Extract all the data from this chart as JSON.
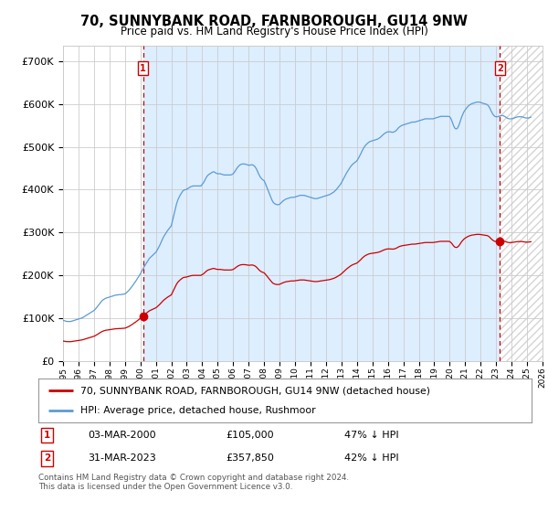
{
  "title": "70, SUNNYBANK ROAD, FARNBOROUGH, GU14 9NW",
  "subtitle": "Price paid vs. HM Land Registry's House Price Index (HPI)",
  "hpi_label": "HPI: Average price, detached house, Rushmoor",
  "property_label": "70, SUNNYBANK ROAD, FARNBOROUGH, GU14 9NW (detached house)",
  "sale1_date": "03-MAR-2000",
  "sale1_price": 105000,
  "sale1_text": "47% ↓ HPI",
  "sale2_date": "31-MAR-2023",
  "sale2_price": 357850,
  "sale2_text": "42% ↓ HPI",
  "yticks": [
    0,
    100000,
    200000,
    300000,
    400000,
    500000,
    600000,
    700000
  ],
  "background_color": "#ffffff",
  "grid_color": "#cccccc",
  "hpi_color": "#5b9bd5",
  "sale_color": "#cc0000",
  "vline_color": "#cc0000",
  "fill_color": "#ddeeff",
  "footnote": "Contains HM Land Registry data © Crown copyright and database right 2024.\nThis data is licensed under the Open Government Licence v3.0.",
  "hpi_monthly": {
    "dates": [
      1995.0,
      1995.083,
      1995.167,
      1995.25,
      1995.333,
      1995.417,
      1995.5,
      1995.583,
      1995.667,
      1995.75,
      1995.833,
      1995.917,
      1996.0,
      1996.083,
      1996.167,
      1996.25,
      1996.333,
      1996.417,
      1996.5,
      1996.583,
      1996.667,
      1996.75,
      1996.833,
      1996.917,
      1997.0,
      1997.083,
      1997.167,
      1997.25,
      1997.333,
      1997.417,
      1997.5,
      1997.583,
      1997.667,
      1997.75,
      1997.833,
      1997.917,
      1998.0,
      1998.083,
      1998.167,
      1998.25,
      1998.333,
      1998.417,
      1998.5,
      1998.583,
      1998.667,
      1998.75,
      1998.833,
      1998.917,
      1999.0,
      1999.083,
      1999.167,
      1999.25,
      1999.333,
      1999.417,
      1999.5,
      1999.583,
      1999.667,
      1999.75,
      1999.833,
      1999.917,
      2000.0,
      2000.083,
      2000.167,
      2000.25,
      2000.333,
      2000.417,
      2000.5,
      2000.583,
      2000.667,
      2000.75,
      2000.833,
      2000.917,
      2001.0,
      2001.083,
      2001.167,
      2001.25,
      2001.333,
      2001.417,
      2001.5,
      2001.583,
      2001.667,
      2001.75,
      2001.833,
      2001.917,
      2002.0,
      2002.083,
      2002.167,
      2002.25,
      2002.333,
      2002.417,
      2002.5,
      2002.583,
      2002.667,
      2002.75,
      2002.833,
      2002.917,
      2003.0,
      2003.083,
      2003.167,
      2003.25,
      2003.333,
      2003.417,
      2003.5,
      2003.583,
      2003.667,
      2003.75,
      2003.833,
      2003.917,
      2004.0,
      2004.083,
      2004.167,
      2004.25,
      2004.333,
      2004.417,
      2004.5,
      2004.583,
      2004.667,
      2004.75,
      2004.833,
      2004.917,
      2005.0,
      2005.083,
      2005.167,
      2005.25,
      2005.333,
      2005.417,
      2005.5,
      2005.583,
      2005.667,
      2005.75,
      2005.833,
      2005.917,
      2006.0,
      2006.083,
      2006.167,
      2006.25,
      2006.333,
      2006.417,
      2006.5,
      2006.583,
      2006.667,
      2006.75,
      2006.833,
      2006.917,
      2007.0,
      2007.083,
      2007.167,
      2007.25,
      2007.333,
      2007.417,
      2007.5,
      2007.583,
      2007.667,
      2007.75,
      2007.833,
      2007.917,
      2008.0,
      2008.083,
      2008.167,
      2008.25,
      2008.333,
      2008.417,
      2008.5,
      2008.583,
      2008.667,
      2008.75,
      2008.833,
      2008.917,
      2009.0,
      2009.083,
      2009.167,
      2009.25,
      2009.333,
      2009.417,
      2009.5,
      2009.583,
      2009.667,
      2009.75,
      2009.833,
      2009.917,
      2010.0,
      2010.083,
      2010.167,
      2010.25,
      2010.333,
      2010.417,
      2010.5,
      2010.583,
      2010.667,
      2010.75,
      2010.833,
      2010.917,
      2011.0,
      2011.083,
      2011.167,
      2011.25,
      2011.333,
      2011.417,
      2011.5,
      2011.583,
      2011.667,
      2011.75,
      2011.833,
      2011.917,
      2012.0,
      2012.083,
      2012.167,
      2012.25,
      2012.333,
      2012.417,
      2012.5,
      2012.583,
      2012.667,
      2012.75,
      2012.833,
      2012.917,
      2013.0,
      2013.083,
      2013.167,
      2013.25,
      2013.333,
      2013.417,
      2013.5,
      2013.583,
      2013.667,
      2013.75,
      2013.833,
      2013.917,
      2014.0,
      2014.083,
      2014.167,
      2014.25,
      2014.333,
      2014.417,
      2014.5,
      2014.583,
      2014.667,
      2014.75,
      2014.833,
      2014.917,
      2015.0,
      2015.083,
      2015.167,
      2015.25,
      2015.333,
      2015.417,
      2015.5,
      2015.583,
      2015.667,
      2015.75,
      2015.833,
      2015.917,
      2016.0,
      2016.083,
      2016.167,
      2016.25,
      2016.333,
      2016.417,
      2016.5,
      2016.583,
      2016.667,
      2016.75,
      2016.833,
      2016.917,
      2017.0,
      2017.083,
      2017.167,
      2017.25,
      2017.333,
      2017.417,
      2017.5,
      2017.583,
      2017.667,
      2017.75,
      2017.833,
      2017.917,
      2018.0,
      2018.083,
      2018.167,
      2018.25,
      2018.333,
      2018.417,
      2018.5,
      2018.583,
      2018.667,
      2018.75,
      2018.833,
      2018.917,
      2019.0,
      2019.083,
      2019.167,
      2019.25,
      2019.333,
      2019.417,
      2019.5,
      2019.583,
      2019.667,
      2019.75,
      2019.833,
      2019.917,
      2020.0,
      2020.083,
      2020.167,
      2020.25,
      2020.333,
      2020.417,
      2020.5,
      2020.583,
      2020.667,
      2020.75,
      2020.833,
      2020.917,
      2021.0,
      2021.083,
      2021.167,
      2021.25,
      2021.333,
      2021.417,
      2021.5,
      2021.583,
      2021.667,
      2021.75,
      2021.833,
      2021.917,
      2022.0,
      2022.083,
      2022.167,
      2022.25,
      2022.333,
      2022.417,
      2022.5,
      2022.583,
      2022.667,
      2022.75,
      2022.833,
      2022.917,
      2023.0,
      2023.083,
      2023.167,
      2023.25,
      2023.333,
      2023.417,
      2023.5,
      2023.583,
      2023.667,
      2023.75,
      2023.833,
      2023.917,
      2024.0,
      2024.083,
      2024.167,
      2024.25,
      2024.333,
      2024.417,
      2024.5,
      2024.583,
      2024.667,
      2024.75,
      2024.833,
      2024.917,
      2025.0,
      2025.083,
      2025.167,
      2025.25
    ],
    "hpi_vals": [
      100,
      99,
      98,
      97,
      97,
      97,
      97,
      98,
      99,
      100,
      101,
      102,
      103,
      104,
      105,
      106,
      108,
      110,
      112,
      114,
      116,
      118,
      120,
      122,
      124,
      127,
      131,
      135,
      139,
      143,
      147,
      150,
      152,
      154,
      155,
      156,
      157,
      158,
      159,
      160,
      161,
      162,
      162,
      163,
      163,
      163,
      164,
      164,
      165,
      167,
      170,
      173,
      177,
      181,
      185,
      190,
      194,
      199,
      204,
      209,
      214,
      220,
      226,
      232,
      237,
      242,
      247,
      252,
      255,
      258,
      261,
      264,
      267,
      272,
      278,
      284,
      291,
      298,
      305,
      310,
      315,
      320,
      324,
      328,
      332,
      345,
      358,
      372,
      385,
      395,
      402,
      408,
      413,
      418,
      420,
      421,
      422,
      424,
      426,
      428,
      429,
      430,
      430,
      430,
      430,
      430,
      430,
      430,
      434,
      438,
      444,
      450,
      455,
      458,
      460,
      462,
      464,
      465,
      463,
      461,
      460,
      460,
      460,
      459,
      458,
      457,
      457,
      457,
      457,
      457,
      457,
      458,
      460,
      464,
      469,
      474,
      478,
      481,
      483,
      484,
      484,
      484,
      483,
      482,
      481,
      481,
      482,
      482,
      480,
      477,
      472,
      465,
      458,
      452,
      448,
      445,
      443,
      436,
      428,
      420,
      412,
      404,
      396,
      390,
      387,
      385,
      384,
      384,
      385,
      388,
      391,
      394,
      396,
      398,
      399,
      400,
      401,
      402,
      402,
      402,
      403,
      404,
      405,
      406,
      407,
      407,
      407,
      407,
      406,
      405,
      404,
      403,
      402,
      401,
      400,
      399,
      399,
      399,
      400,
      401,
      402,
      403,
      404,
      405,
      406,
      407,
      408,
      409,
      411,
      413,
      415,
      418,
      421,
      425,
      429,
      433,
      438,
      444,
      450,
      456,
      462,
      467,
      472,
      477,
      481,
      484,
      487,
      489,
      492,
      497,
      503,
      509,
      516,
      522,
      527,
      531,
      534,
      537,
      539,
      540,
      541,
      542,
      543,
      544,
      545,
      547,
      549,
      552,
      555,
      558,
      560,
      562,
      563,
      563,
      563,
      562,
      562,
      563,
      565,
      568,
      572,
      575,
      577,
      579,
      580,
      581,
      582,
      583,
      584,
      585,
      586,
      587,
      587,
      587,
      588,
      589,
      590,
      591,
      592,
      593,
      594,
      595,
      595,
      595,
      595,
      595,
      595,
      595,
      596,
      597,
      598,
      599,
      600,
      601,
      601,
      601,
      601,
      601,
      601,
      601,
      600,
      595,
      587,
      578,
      572,
      570,
      572,
      578,
      587,
      597,
      605,
      612,
      617,
      621,
      625,
      628,
      630,
      632,
      633,
      634,
      635,
      636,
      636,
      636,
      635,
      634,
      633,
      632,
      631,
      630,
      627,
      622,
      615,
      609,
      604,
      601,
      600,
      600,
      601,
      602,
      603,
      603,
      602,
      600,
      598,
      596,
      595,
      595,
      595,
      596,
      597,
      598,
      599,
      600,
      600,
      600,
      600,
      599,
      598,
      597,
      597,
      597,
      598,
      599
    ]
  },
  "sale1_year": 2000.167,
  "sale2_year": 2023.25,
  "sale1_hpi_index": 226,
  "sale2_hpi_index": 602,
  "xlim_left": 1995.0,
  "xlim_right": 2026.0,
  "ylim_top": 735000
}
